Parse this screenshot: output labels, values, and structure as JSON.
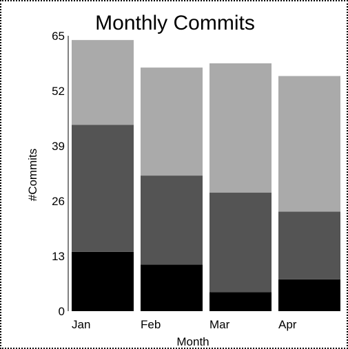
{
  "chart_data": {
    "type": "bar",
    "stacked": true,
    "title": "Monthly Commits",
    "xlabel": "Month",
    "ylabel": "#Commits",
    "categories": [
      "Jan",
      "Feb",
      "Mar",
      "Apr"
    ],
    "ylim": [
      0,
      65
    ],
    "yticks": [
      0,
      13,
      26,
      39,
      52,
      65
    ],
    "grid": false,
    "series": [
      {
        "values": [
          14,
          11,
          4.5,
          7.5
        ],
        "color": "#000000"
      },
      {
        "values": [
          30,
          21,
          23.5,
          16
        ],
        "color": "#545454"
      },
      {
        "values": [
          20,
          25.5,
          30.5,
          32
        ],
        "color": "#aaaaaa"
      }
    ]
  }
}
